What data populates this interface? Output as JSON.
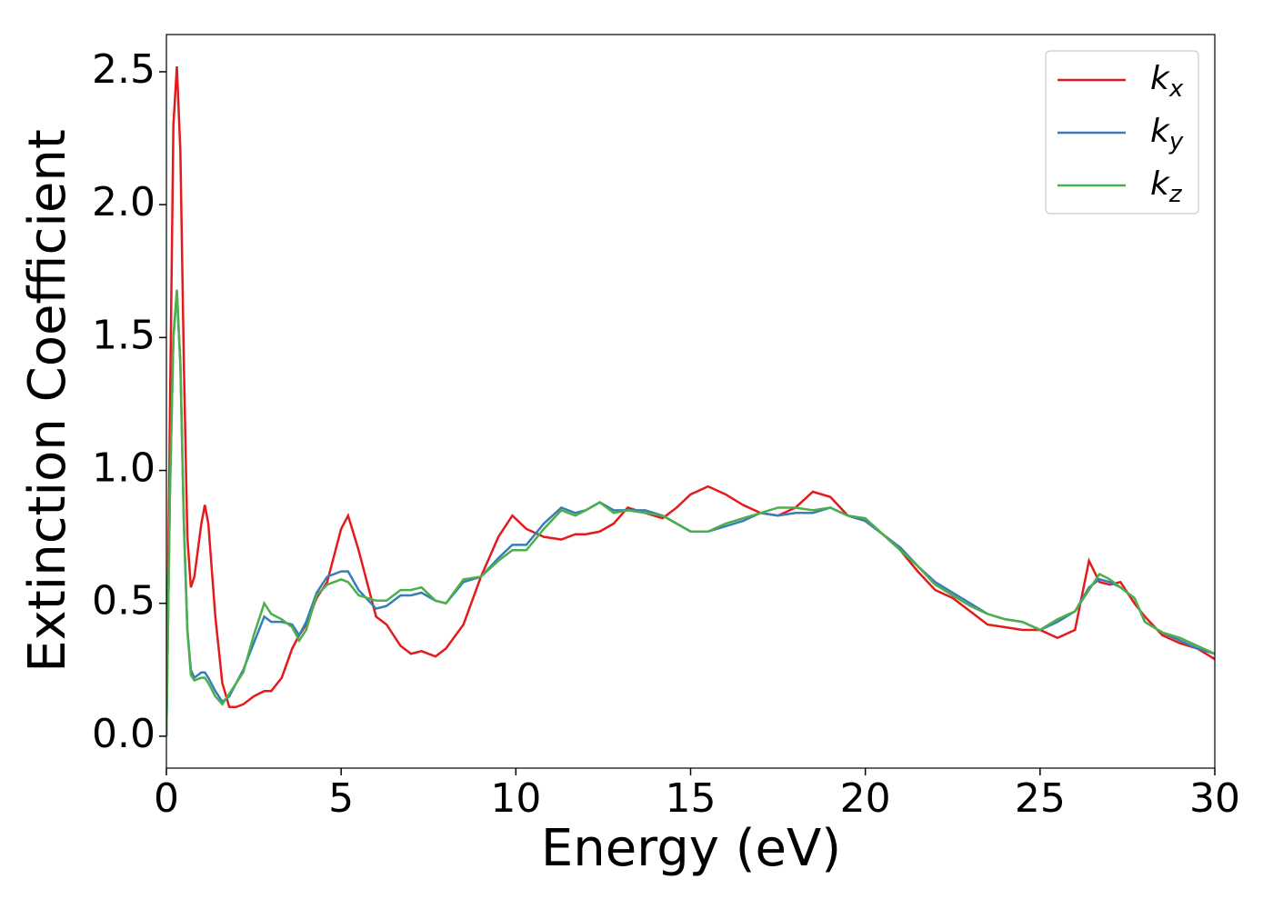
{
  "chart_data": {
    "type": "line",
    "xlabel": "Energy (eV)",
    "ylabel": "Extinction Coefficient",
    "x": [
      0,
      0.1,
      0.2,
      0.3,
      0.4,
      0.5,
      0.6,
      0.7,
      0.8,
      1.0,
      1.1,
      1.2,
      1.4,
      1.6,
      1.8,
      2.0,
      2.2,
      2.5,
      2.8,
      3.0,
      3.3,
      3.6,
      3.8,
      4.0,
      4.3,
      4.6,
      5.0,
      5.2,
      5.5,
      6.0,
      6.3,
      6.7,
      7.0,
      7.3,
      7.7,
      8.0,
      8.5,
      9.0,
      9.5,
      9.9,
      10.3,
      10.8,
      11.3,
      11.7,
      12.0,
      12.4,
      12.8,
      13.2,
      13.7,
      14.2,
      14.6,
      15.0,
      15.5,
      16.0,
      16.5,
      17.0,
      17.5,
      18.0,
      18.5,
      19.0,
      19.5,
      20.0,
      20.5,
      21.0,
      21.5,
      22.0,
      22.5,
      23.0,
      23.5,
      24.0,
      24.5,
      25.0,
      25.5,
      26.0,
      26.4,
      26.7,
      27.0,
      27.3,
      27.7,
      28.0,
      28.5,
      29.0,
      29.5,
      30.0
    ],
    "series": [
      {
        "name": "kx",
        "color": "#e41a1c",
        "values": [
          0,
          1.2,
          2.3,
          2.52,
          2.2,
          1.4,
          0.75,
          0.56,
          0.6,
          0.8,
          0.87,
          0.8,
          0.45,
          0.2,
          0.11,
          0.11,
          0.12,
          0.15,
          0.17,
          0.17,
          0.22,
          0.33,
          0.38,
          0.42,
          0.52,
          0.58,
          0.78,
          0.83,
          0.7,
          0.45,
          0.42,
          0.34,
          0.31,
          0.32,
          0.3,
          0.33,
          0.42,
          0.6,
          0.75,
          0.83,
          0.78,
          0.75,
          0.74,
          0.76,
          0.76,
          0.77,
          0.8,
          0.86,
          0.84,
          0.82,
          0.86,
          0.91,
          0.94,
          0.91,
          0.87,
          0.84,
          0.83,
          0.86,
          0.92,
          0.9,
          0.83,
          0.81,
          0.76,
          0.7,
          0.62,
          0.55,
          0.52,
          0.47,
          0.42,
          0.41,
          0.4,
          0.4,
          0.37,
          0.4,
          0.66,
          0.58,
          0.57,
          0.58,
          0.5,
          0.45,
          0.38,
          0.35,
          0.33,
          0.29
        ]
      },
      {
        "name": "ky",
        "color": "#377eb8",
        "values": [
          0,
          0.9,
          1.5,
          1.67,
          1.4,
          0.8,
          0.4,
          0.25,
          0.22,
          0.24,
          0.24,
          0.22,
          0.17,
          0.13,
          0.15,
          0.2,
          0.25,
          0.35,
          0.45,
          0.43,
          0.43,
          0.42,
          0.38,
          0.43,
          0.54,
          0.6,
          0.62,
          0.62,
          0.55,
          0.48,
          0.49,
          0.53,
          0.53,
          0.54,
          0.51,
          0.5,
          0.58,
          0.6,
          0.67,
          0.72,
          0.72,
          0.8,
          0.86,
          0.84,
          0.85,
          0.88,
          0.85,
          0.85,
          0.85,
          0.83,
          0.8,
          0.77,
          0.77,
          0.79,
          0.81,
          0.84,
          0.83,
          0.84,
          0.84,
          0.86,
          0.83,
          0.81,
          0.76,
          0.71,
          0.64,
          0.58,
          0.54,
          0.5,
          0.46,
          0.44,
          0.43,
          0.4,
          0.43,
          0.47,
          0.56,
          0.59,
          0.58,
          0.56,
          0.52,
          0.43,
          0.39,
          0.36,
          0.33,
          0.31
        ]
      },
      {
        "name": "kz",
        "color": "#4daf4a",
        "values": [
          0,
          0.9,
          1.5,
          1.68,
          1.4,
          0.8,
          0.4,
          0.23,
          0.21,
          0.22,
          0.22,
          0.2,
          0.15,
          0.12,
          0.16,
          0.2,
          0.24,
          0.38,
          0.5,
          0.46,
          0.44,
          0.41,
          0.36,
          0.4,
          0.53,
          0.57,
          0.59,
          0.58,
          0.53,
          0.51,
          0.51,
          0.55,
          0.55,
          0.56,
          0.51,
          0.5,
          0.59,
          0.6,
          0.66,
          0.7,
          0.7,
          0.78,
          0.85,
          0.83,
          0.85,
          0.88,
          0.84,
          0.85,
          0.84,
          0.83,
          0.8,
          0.77,
          0.77,
          0.8,
          0.82,
          0.84,
          0.86,
          0.86,
          0.85,
          0.86,
          0.83,
          0.82,
          0.76,
          0.7,
          0.64,
          0.57,
          0.53,
          0.49,
          0.46,
          0.44,
          0.43,
          0.4,
          0.44,
          0.47,
          0.55,
          0.61,
          0.59,
          0.56,
          0.52,
          0.43,
          0.39,
          0.37,
          0.34,
          0.31
        ]
      }
    ],
    "xlim": [
      0,
      30
    ],
    "xticks": [
      0,
      5,
      10,
      15,
      20,
      25,
      30
    ],
    "ylim": [
      -0.12,
      2.64
    ],
    "yticks": [
      {
        "value": 0,
        "label": "0.0"
      },
      0.5,
      {
        "value": 1,
        "label": "1.0"
      },
      1.5,
      {
        "value": 2,
        "label": "2.0"
      },
      2.5
    ],
    "legend": "upper right"
  }
}
